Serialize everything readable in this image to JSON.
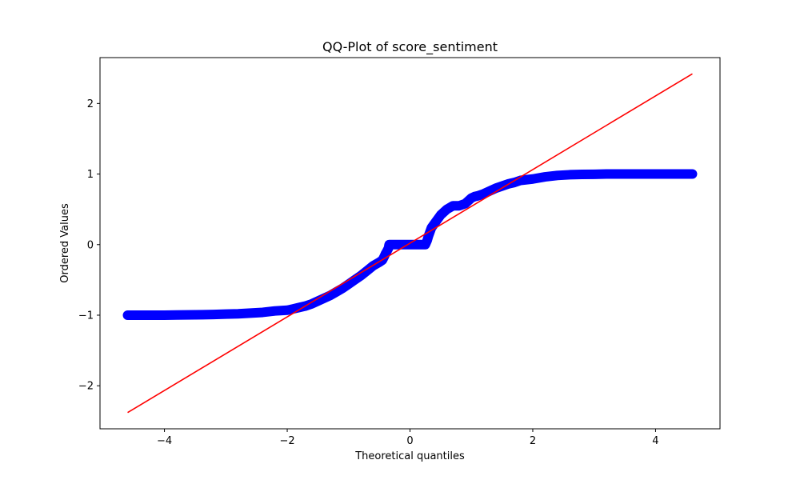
{
  "chart_data": {
    "type": "scatter",
    "title": "QQ-Plot of score_sentiment",
    "xlabel": "Theoretical quantiles",
    "ylabel": "Ordered Values",
    "xlim": [
      -5.05,
      5.05
    ],
    "ylim": [
      -2.61,
      2.65
    ],
    "xticks": [
      -4,
      -2,
      0,
      2,
      4
    ],
    "yticks": [
      -2,
      -1,
      0,
      1,
      2
    ],
    "xtick_labels": [
      "−4",
      "−2",
      "0",
      "2",
      "4"
    ],
    "ytick_labels": [
      "−2",
      "−1",
      "0",
      "1",
      "2"
    ],
    "grid": false,
    "series": [
      {
        "kind": "scatter",
        "color": "#0000ff",
        "x": [
          -4.6,
          -4.45,
          -4.38,
          -4.3,
          -4.2,
          -4.0,
          -3.8,
          -3.5,
          -3.2,
          -3.0,
          -2.8,
          -2.6,
          -2.4,
          -2.2,
          -2.0,
          -1.9,
          -1.8,
          -1.7,
          -1.6,
          -1.5,
          -1.4,
          -1.3,
          -1.2,
          -1.1,
          -1.0,
          -0.9,
          -0.8,
          -0.7,
          -0.6,
          -0.5,
          -0.45,
          -0.42,
          -0.4,
          -0.38,
          -0.35,
          -0.34,
          -0.3,
          -0.2,
          -0.1,
          0.0,
          0.1,
          0.2,
          0.25,
          0.28,
          0.3,
          0.35,
          0.4,
          0.45,
          0.5,
          0.6,
          0.7,
          0.75,
          0.8,
          0.9,
          0.95,
          1.0,
          1.05,
          1.1,
          1.2,
          1.3,
          1.4,
          1.5,
          1.6,
          1.7,
          1.8,
          2.0,
          2.2,
          2.4,
          2.6,
          2.8,
          3.0,
          3.2,
          3.5,
          3.8,
          4.0,
          4.2,
          4.3,
          4.38,
          4.45,
          4.6
        ],
        "y": [
          -1.0,
          -1.0,
          -1.0,
          -1.0,
          -1.0,
          -1.0,
          -0.997,
          -0.995,
          -0.99,
          -0.985,
          -0.98,
          -0.97,
          -0.96,
          -0.94,
          -0.93,
          -0.91,
          -0.89,
          -0.87,
          -0.84,
          -0.8,
          -0.76,
          -0.72,
          -0.67,
          -0.62,
          -0.56,
          -0.5,
          -0.44,
          -0.37,
          -0.3,
          -0.25,
          -0.22,
          -0.17,
          -0.13,
          -0.1,
          -0.05,
          0.0,
          0.0,
          0.0,
          0.0,
          0.0,
          0.0,
          0.0,
          0.0,
          0.06,
          0.12,
          0.24,
          0.3,
          0.36,
          0.42,
          0.5,
          0.55,
          0.55,
          0.55,
          0.58,
          0.62,
          0.66,
          0.68,
          0.69,
          0.72,
          0.76,
          0.8,
          0.83,
          0.86,
          0.88,
          0.91,
          0.93,
          0.96,
          0.98,
          0.99,
          0.995,
          0.997,
          1.0,
          1.0,
          1.0,
          1.0,
          1.0,
          1.0,
          1.0,
          1.0,
          1.0
        ]
      },
      {
        "kind": "line",
        "color": "#ff0000",
        "x": [
          -4.6,
          4.6
        ],
        "y": [
          -2.38,
          2.42
        ]
      }
    ]
  }
}
